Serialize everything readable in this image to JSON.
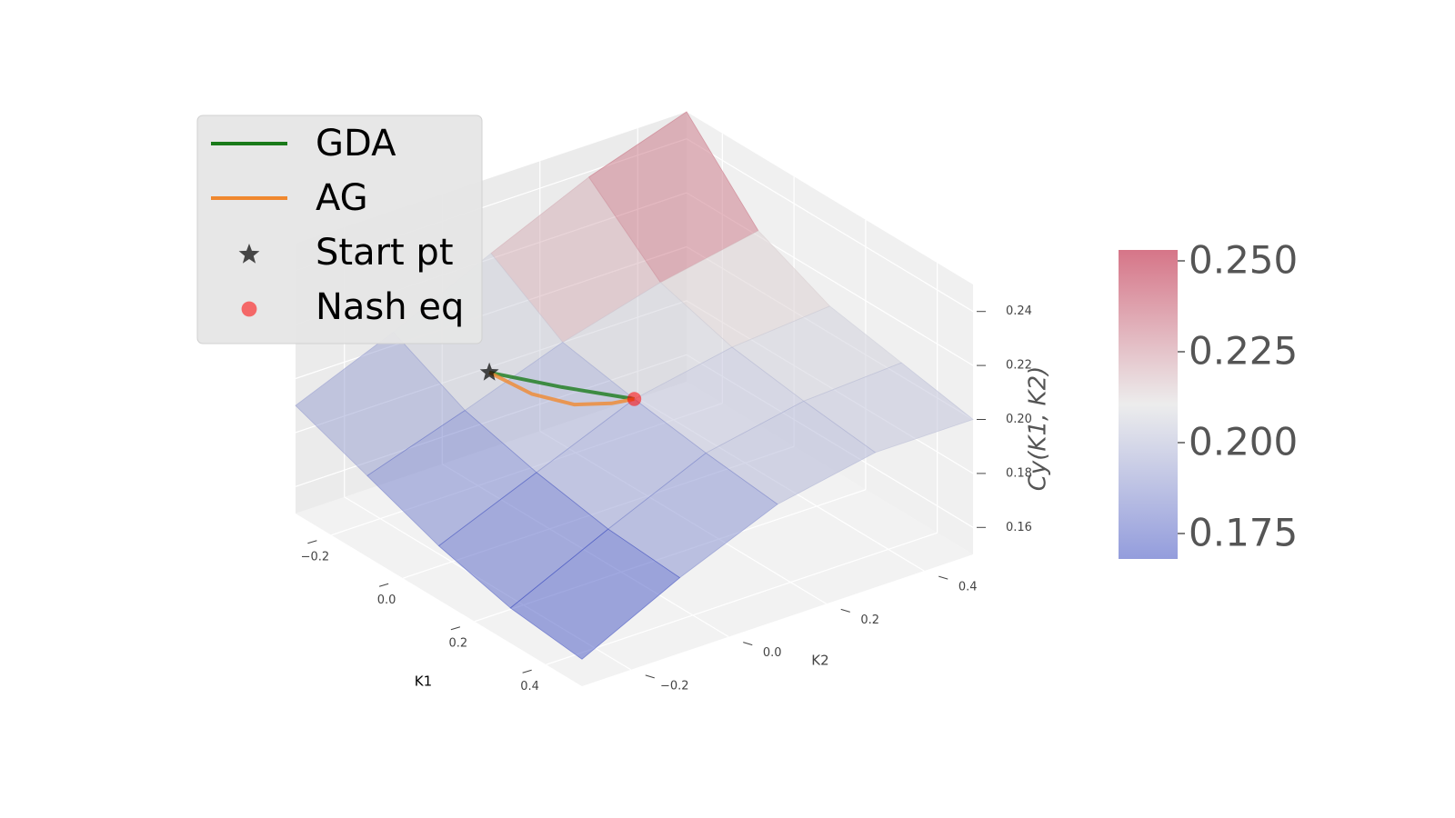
{
  "chart_data": {
    "type": "surface3d",
    "xlabel": "K1",
    "ylabel": "K2",
    "zlabel": "Cy(K1, K2)",
    "x": [
      -0.3,
      -0.1,
      0.1,
      0.3,
      0.5
    ],
    "y": [
      -0.3,
      -0.1,
      0.1,
      0.3,
      0.5
    ],
    "z": [
      [
        0.19,
        0.205,
        0.222,
        0.238,
        0.25
      ],
      [
        0.18,
        0.192,
        0.205,
        0.215,
        0.222
      ],
      [
        0.17,
        0.185,
        0.2,
        0.207,
        0.21
      ],
      [
        0.163,
        0.18,
        0.196,
        0.203,
        0.205
      ],
      [
        0.16,
        0.178,
        0.193,
        0.2,
        0.2
      ]
    ],
    "xlim": [
      -0.3,
      0.5
    ],
    "ylim": [
      -0.3,
      0.5
    ],
    "zlim": [
      0.15,
      0.25
    ],
    "xticks": [
      {
        "value": -0.2,
        "label": "−0.2"
      },
      {
        "value": 0,
        "label": "0.0"
      },
      0.2,
      0.4
    ],
    "yticks": [
      {
        "value": -0.2,
        "label": "−0.2"
      },
      {
        "value": 0,
        "label": "0.0"
      },
      0.2,
      0.4
    ],
    "zticks": [
      0.16,
      0.18,
      {
        "value": 0.2,
        "label": "0.20"
      },
      0.22,
      0.24
    ],
    "colormap": "coolwarm",
    "clim": [
      0.168,
      0.253
    ],
    "cticks": [
      0.175,
      {
        "value": 0.2,
        "label": "0.200"
      },
      0.225,
      {
        "value": 0.25,
        "label": "0.250"
      }
    ],
    "series": [
      {
        "name": "GDA",
        "color": "#1a7a1a",
        "k1": [
          -0.1,
          0.0,
          0.1
        ],
        "k2": [
          -0.05,
          0.025,
          0.1
        ],
        "z": [
          0.203,
          0.201,
          0.2
        ]
      },
      {
        "name": "AG",
        "color": "#f0882f",
        "k1": [
          -0.1,
          -0.05,
          0.0,
          0.05,
          0.1
        ],
        "k2": [
          -0.05,
          0.0,
          0.05,
          0.09,
          0.1
        ],
        "z": [
          0.203,
          0.196,
          0.193,
          0.195,
          0.2
        ]
      }
    ],
    "markers": [
      {
        "name": "Start pt",
        "marker": "star",
        "color": "#000000",
        "k1": -0.1,
        "k2": -0.05,
        "z": 0.203
      },
      {
        "name": "Nash eq",
        "marker": "circle",
        "color": "#ff0000",
        "k1": 0.1,
        "k2": 0.1,
        "z": 0.2
      }
    ],
    "legend": "upper left"
  }
}
